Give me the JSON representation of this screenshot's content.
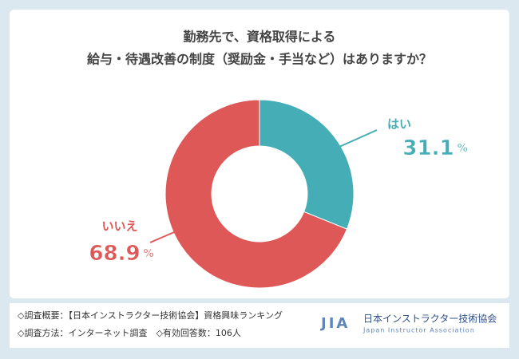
{
  "chart_data": {
    "type": "donut",
    "title": [
      "勤務先で、資格取得による",
      "給与・待遇改善の制度（奨励金・手当など）はありますか？"
    ],
    "categories": [
      "はい",
      "いいえ"
    ],
    "values": [
      31.1,
      68.9
    ],
    "unit": "%",
    "colors": [
      "#45adb6",
      "#df5858"
    ]
  },
  "footer": {
    "notes": [
      "◇調査概要：【日本インストラクター技術協会】資格興味ランキング",
      "◇調査方法：インターネット調査　◇有効回答数：106人"
    ],
    "logo": {
      "mark": "JIA",
      "name": "日本インストラクター技術協会",
      "english": "Japan Instructor Association"
    }
  }
}
